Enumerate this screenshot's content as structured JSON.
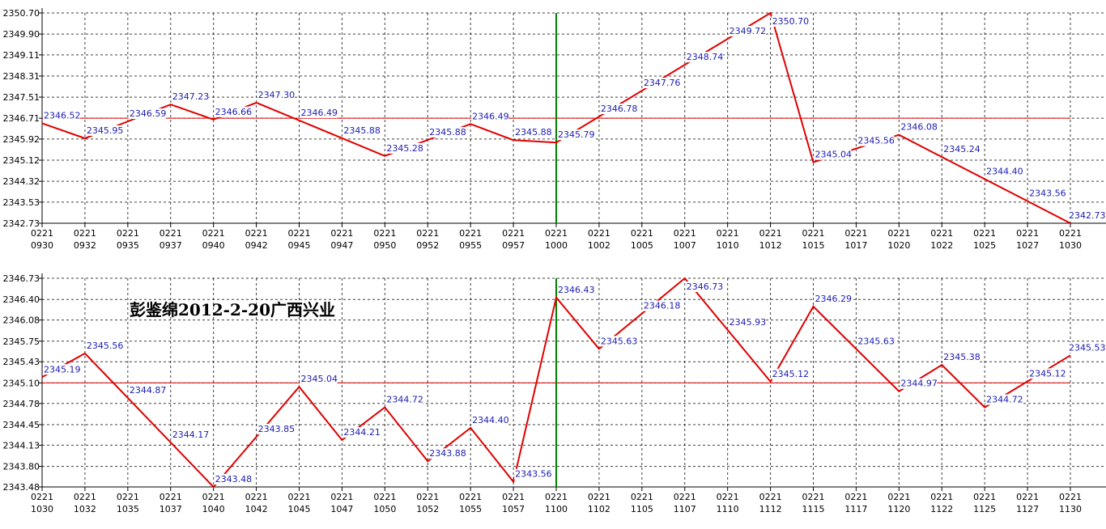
{
  "caption": "彭鉴绵2012-2-20广西兴业",
  "colors": {
    "series": "#e00000",
    "reference": "#e00000",
    "divider": "#008000",
    "label": "#1c1cb4",
    "grid": "#000000"
  },
  "chart_data": [
    {
      "type": "line",
      "grid": true,
      "ylim": [
        2342.73,
        2350.7
      ],
      "y_ticks": [
        "2350.70",
        "2349.90",
        "2349.11",
        "2348.31",
        "2347.51",
        "2346.71",
        "2345.92",
        "2345.12",
        "2344.32",
        "2343.53",
        "2342.73"
      ],
      "reference_value": 2346.71,
      "divider_at": "1000",
      "x_ticks": [
        "0930",
        "0932",
        "0935",
        "0937",
        "0940",
        "0942",
        "0945",
        "0947",
        "0950",
        "0952",
        "0955",
        "0957",
        "1000",
        "1002",
        "1005",
        "1007",
        "1010",
        "1012",
        "1015",
        "1017",
        "1020",
        "1022",
        "1025",
        "1027",
        "1030"
      ],
      "x_tick_prefix": "0221",
      "x": [
        "0930",
        "0932",
        "0937",
        "0940",
        "0942",
        "0950",
        "0955",
        "0957",
        "1000",
        "1012",
        "1015",
        "1020",
        "1030"
      ],
      "values": [
        2346.52,
        2345.95,
        2347.23,
        2346.66,
        2347.3,
        2345.28,
        2346.49,
        2345.88,
        2345.79,
        2350.7,
        2345.04,
        2346.08,
        2342.73
      ],
      "labels": [
        {
          "x": "0930",
          "value": "2346.52"
        },
        {
          "x": "0932",
          "value": "2345.95"
        },
        {
          "x": "0935",
          "value": "2346.59"
        },
        {
          "x": "0937",
          "value": "2347.23"
        },
        {
          "x": "0940",
          "value": "2346.66"
        },
        {
          "x": "0942",
          "value": "2347.30"
        },
        {
          "x": "0945",
          "value": "2346.49"
        },
        {
          "x": "0947",
          "value": "2345.88"
        },
        {
          "x": "0950",
          "value": "2345.28"
        },
        {
          "x": "0952",
          "value": "2345.88"
        },
        {
          "x": "0955",
          "value": "2346.49"
        },
        {
          "x": "0957",
          "value": "2345.88"
        },
        {
          "x": "1000",
          "value": "2345.79"
        },
        {
          "x": "1002",
          "value": "2346.78"
        },
        {
          "x": "1005",
          "value": "2347.76"
        },
        {
          "x": "1007",
          "value": "2348.74"
        },
        {
          "x": "1010",
          "value": "2349.72"
        },
        {
          "x": "1012",
          "value": "2350.70"
        },
        {
          "x": "1015",
          "value": "2345.04"
        },
        {
          "x": "1017",
          "value": "2345.56"
        },
        {
          "x": "1020",
          "value": "2346.08"
        },
        {
          "x": "1022",
          "value": "2345.24"
        },
        {
          "x": "1025",
          "value": "2344.40"
        },
        {
          "x": "1027",
          "value": "2343.56"
        },
        {
          "x": "1030",
          "value": "2342.73"
        }
      ]
    },
    {
      "type": "line",
      "grid": true,
      "ylim": [
        2343.48,
        2346.73
      ],
      "y_ticks": [
        "2346.73",
        "2346.40",
        "2346.08",
        "2345.75",
        "2345.43",
        "2345.10",
        "2344.78",
        "2344.45",
        "2344.13",
        "2343.80",
        "2343.48"
      ],
      "reference_value": 2345.1,
      "divider_at": "1100",
      "x_ticks": [
        "1030",
        "1032",
        "1035",
        "1037",
        "1040",
        "1042",
        "1045",
        "1047",
        "1050",
        "1052",
        "1055",
        "1057",
        "1100",
        "1102",
        "1105",
        "1107",
        "1110",
        "1112",
        "1115",
        "1117",
        "1120",
        "1122",
        "1125",
        "1127",
        "1130"
      ],
      "x_tick_prefix": "0221",
      "x": [
        "1030",
        "1032",
        "1040",
        "1045",
        "1047",
        "1050",
        "1052",
        "1055",
        "1057",
        "1100",
        "1102",
        "1107",
        "1112",
        "1115",
        "1120",
        "1122",
        "1125",
        "1130"
      ],
      "values": [
        2345.19,
        2345.56,
        2343.48,
        2345.04,
        2344.21,
        2344.72,
        2343.88,
        2344.4,
        2343.56,
        2346.43,
        2345.63,
        2346.73,
        2345.12,
        2346.29,
        2344.97,
        2345.38,
        2344.72,
        2345.53
      ],
      "labels": [
        {
          "x": "1030",
          "value": "2345.19"
        },
        {
          "x": "1032",
          "value": "2345.56"
        },
        {
          "x": "1035",
          "value": "2344.87"
        },
        {
          "x": "1037",
          "value": "2344.17"
        },
        {
          "x": "1040",
          "value": "2343.48"
        },
        {
          "x": "1042",
          "value": "2343.85"
        },
        {
          "x": "1045",
          "value": "2345.04"
        },
        {
          "x": "1047",
          "value": "2344.21"
        },
        {
          "x": "1050",
          "value": "2344.72"
        },
        {
          "x": "1052",
          "value": "2343.88"
        },
        {
          "x": "1055",
          "value": "2344.40"
        },
        {
          "x": "1057",
          "value": "2343.56"
        },
        {
          "x": "1100",
          "value": "2346.43"
        },
        {
          "x": "1102",
          "value": "2345.63"
        },
        {
          "x": "1105",
          "value": "2346.18"
        },
        {
          "x": "1107",
          "value": "2346.73"
        },
        {
          "x": "1110",
          "value": "2345.93"
        },
        {
          "x": "1112",
          "value": "2345.12"
        },
        {
          "x": "1115",
          "value": "2346.29"
        },
        {
          "x": "1117",
          "value": "2345.63"
        },
        {
          "x": "1120",
          "value": "2344.97"
        },
        {
          "x": "1122",
          "value": "2345.38"
        },
        {
          "x": "1125",
          "value": "2344.72"
        },
        {
          "x": "1127",
          "value": "2345.12"
        },
        {
          "x": "1130",
          "value": "2345.53"
        }
      ]
    }
  ]
}
